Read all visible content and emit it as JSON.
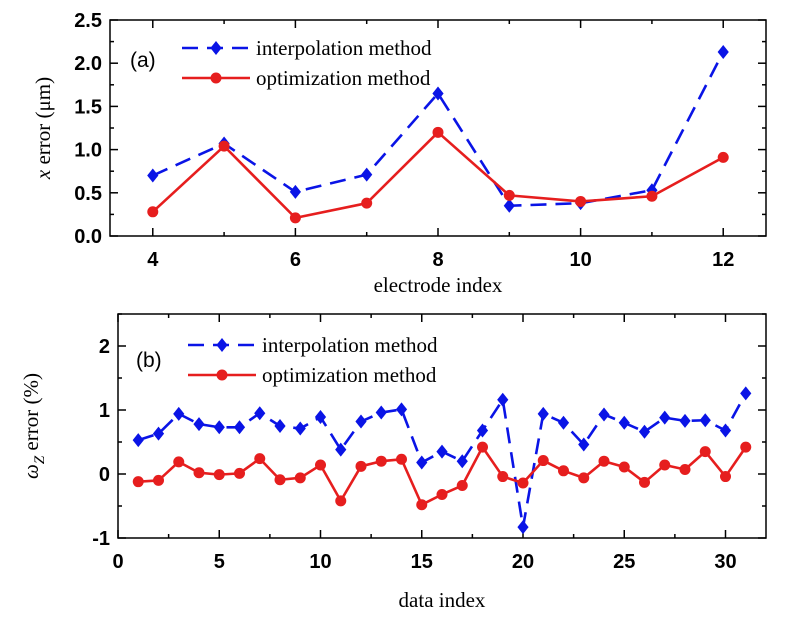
{
  "colors": {
    "interpolation": "#0a14e6",
    "optimization": "#e61e1e",
    "axis": "#000000"
  },
  "chart_data": [
    {
      "type": "line",
      "panel_label": "(a)",
      "xlabel": "electrode index",
      "ylabel_var": "x",
      "ylabel_rest": " error (μm)",
      "xlim": [
        3.4,
        12.6
      ],
      "ylim": [
        0,
        2.5
      ],
      "xticks": [
        4,
        6,
        8,
        10,
        12
      ],
      "xtick_labels": [
        "4",
        "6",
        "8",
        "10",
        "12"
      ],
      "yticks": [
        0,
        0.5,
        1,
        1.5,
        2,
        2.5
      ],
      "ytick_labels": [
        "0.0",
        "0.5",
        "1.0",
        "1.5",
        "2.0",
        "2.5"
      ],
      "legend": {
        "position": "top-left"
      },
      "series": [
        {
          "name": "interpolation method",
          "style": "dashed",
          "marker": "diamond",
          "x": [
            4,
            5,
            6,
            7,
            8,
            9,
            10,
            11,
            12
          ],
          "y": [
            0.7,
            1.07,
            0.51,
            0.71,
            1.65,
            0.35,
            0.38,
            0.53,
            2.13
          ]
        },
        {
          "name": "optimization method",
          "style": "solid",
          "marker": "circle",
          "x": [
            4,
            5,
            6,
            7,
            8,
            9,
            10,
            11,
            12
          ],
          "y": [
            0.28,
            1.04,
            0.21,
            0.38,
            1.2,
            0.47,
            0.4,
            0.46,
            0.91
          ]
        }
      ]
    },
    {
      "type": "line",
      "panel_label": "(b)",
      "xlabel": "data index",
      "ylabel_var": "ω",
      "ylabel_sub": "Z",
      "ylabel_rest": "  error (%)",
      "xlim": [
        0,
        32
      ],
      "ylim": [
        -1,
        2.5
      ],
      "xticks": [
        0,
        5,
        10,
        15,
        20,
        25,
        30
      ],
      "xtick_labels": [
        "0",
        "5",
        "10",
        "15",
        "20",
        "25",
        "30"
      ],
      "yticks": [
        -1,
        0,
        1,
        2
      ],
      "ytick_labels": [
        "-1",
        "0",
        "1",
        "2"
      ],
      "legend": {
        "position": "top-left"
      },
      "series": [
        {
          "name": "interpolation method",
          "style": "dashed",
          "marker": "diamond",
          "x": [
            1,
            2,
            3,
            4,
            5,
            6,
            7,
            8,
            9,
            10,
            11,
            12,
            13,
            14,
            15,
            16,
            17,
            18,
            19,
            20,
            21,
            22,
            23,
            24,
            25,
            26,
            27,
            28,
            29,
            30,
            31
          ],
          "y": [
            0.53,
            0.63,
            0.94,
            0.78,
            0.73,
            0.73,
            0.95,
            0.75,
            0.71,
            0.89,
            0.38,
            0.82,
            0.96,
            1.01,
            0.18,
            0.35,
            0.2,
            0.68,
            1.16,
            -0.83,
            0.94,
            0.8,
            0.46,
            0.93,
            0.8,
            0.66,
            0.88,
            0.83,
            0.84,
            0.68,
            1.26
          ]
        },
        {
          "name": "optimization method",
          "style": "solid",
          "marker": "circle",
          "x": [
            1,
            2,
            3,
            4,
            5,
            6,
            7,
            8,
            9,
            10,
            11,
            12,
            13,
            14,
            15,
            16,
            17,
            18,
            19,
            20,
            21,
            22,
            23,
            24,
            25,
            26,
            27,
            28,
            29,
            30,
            31
          ],
          "y": [
            -0.12,
            -0.1,
            0.19,
            0.02,
            -0.01,
            0.01,
            0.24,
            -0.09,
            -0.06,
            0.14,
            -0.42,
            0.12,
            0.2,
            0.23,
            -0.48,
            -0.32,
            -0.18,
            0.42,
            -0.04,
            -0.14,
            0.21,
            0.05,
            -0.06,
            0.2,
            0.11,
            -0.13,
            0.14,
            0.07,
            0.35,
            -0.04,
            0.42
          ]
        }
      ]
    }
  ]
}
